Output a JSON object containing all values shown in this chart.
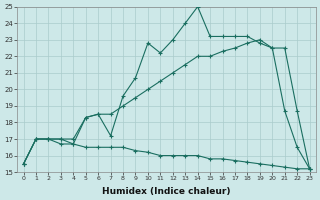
{
  "xlabel": "Humidex (Indice chaleur)",
  "bg_color": "#cde8e8",
  "grid_color": "#aacccc",
  "line_color": "#1a6e60",
  "xlim_min": -0.5,
  "xlim_max": 23.5,
  "ylim_min": 15,
  "ylim_max": 25,
  "xticks": [
    0,
    1,
    2,
    3,
    4,
    5,
    6,
    7,
    8,
    9,
    10,
    11,
    12,
    13,
    14,
    15,
    16,
    17,
    18,
    19,
    20,
    21,
    22,
    23
  ],
  "yticks": [
    15,
    16,
    17,
    18,
    19,
    20,
    21,
    22,
    23,
    24,
    25
  ],
  "curve1_x": [
    0,
    1,
    2,
    3,
    4,
    5,
    6,
    7,
    8,
    9,
    10,
    11,
    12,
    13,
    14,
    15,
    16,
    17,
    18,
    19,
    20,
    21,
    22,
    23
  ],
  "curve1_y": [
    15.5,
    17.0,
    17.0,
    17.0,
    16.7,
    18.3,
    18.5,
    17.2,
    19.6,
    20.7,
    22.8,
    22.2,
    23.0,
    24.0,
    25.0,
    23.2,
    23.2,
    23.2,
    23.2,
    22.8,
    22.5,
    18.7,
    16.5,
    15.2
  ],
  "curve2_x": [
    0,
    1,
    2,
    3,
    4,
    5,
    6,
    7,
    8,
    9,
    10,
    11,
    12,
    13,
    14,
    15,
    16,
    17,
    18,
    19,
    20,
    21,
    22,
    23
  ],
  "curve2_y": [
    15.5,
    17.0,
    17.0,
    17.0,
    17.0,
    18.3,
    18.5,
    18.5,
    19.0,
    19.5,
    20.0,
    20.5,
    21.0,
    21.5,
    22.0,
    22.0,
    22.3,
    22.5,
    22.8,
    23.0,
    22.5,
    22.5,
    18.7,
    15.2
  ],
  "curve3_x": [
    0,
    1,
    2,
    3,
    4,
    5,
    6,
    7,
    8,
    9,
    10,
    11,
    12,
    13,
    14,
    15,
    16,
    17,
    18,
    19,
    20,
    21,
    22,
    23
  ],
  "curve3_y": [
    15.5,
    17.0,
    17.0,
    16.7,
    16.7,
    16.5,
    16.5,
    16.5,
    16.5,
    16.3,
    16.2,
    16.0,
    16.0,
    16.0,
    16.0,
    15.8,
    15.8,
    15.7,
    15.6,
    15.5,
    15.4,
    15.3,
    15.2,
    15.2
  ]
}
